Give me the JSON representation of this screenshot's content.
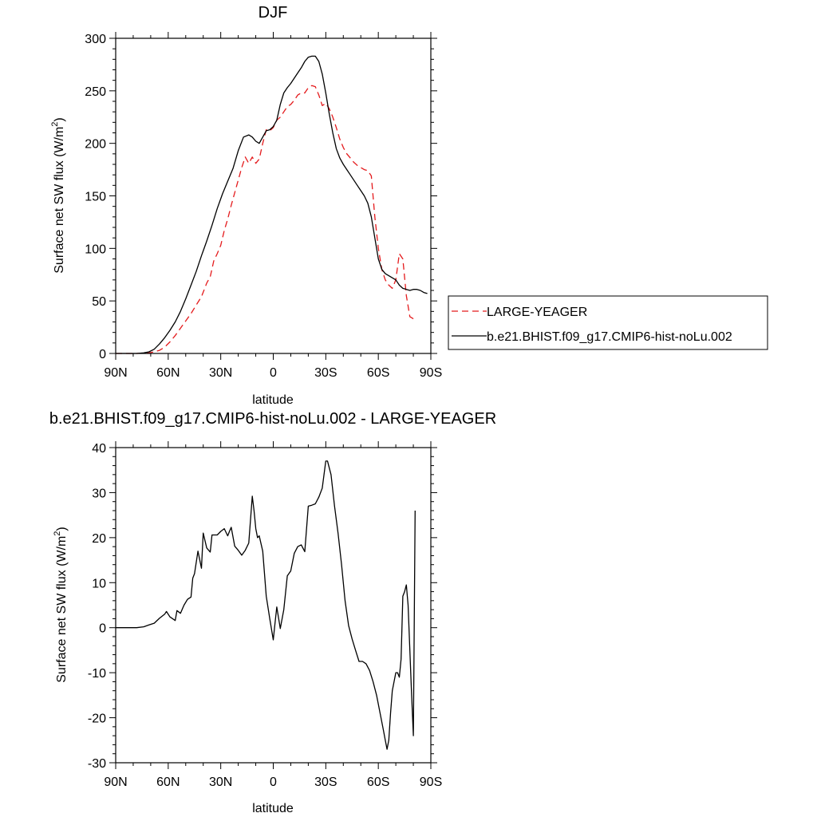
{
  "chart_data": [
    {
      "type": "line",
      "title": "DJF",
      "xlabel": "latitude",
      "ylabel_main": "Surface net SW flux (W/m",
      "ylabel_sup": "2",
      "ylabel_close": ")",
      "xlim": [
        90,
        -90
      ],
      "ylim": [
        0,
        300
      ],
      "xticks": [
        90,
        60,
        30,
        0,
        -30,
        -60,
        -90
      ],
      "xtick_labels": [
        "90N",
        "60N",
        "30N",
        "0",
        "30S",
        "60S",
        "90S"
      ],
      "yticks": [
        0,
        50,
        100,
        150,
        200,
        250,
        300
      ],
      "ytick_labels": [
        "0",
        "50",
        "100",
        "150",
        "200",
        "250",
        "300"
      ],
      "legend_position": "outside-right",
      "series": [
        {
          "name": "LARGE-YEAGER",
          "color": "#e41a1c",
          "dash": "dashed",
          "x": [
            90,
            84,
            78,
            74,
            71,
            68,
            65,
            62,
            59,
            56,
            53,
            50,
            47,
            44,
            41,
            38,
            36,
            34,
            32,
            30,
            28,
            26,
            24,
            22,
            20,
            18,
            16,
            14,
            12,
            10,
            8,
            6,
            4,
            2,
            0,
            -2,
            -4,
            -6,
            -8,
            -10,
            -12,
            -14,
            -16,
            -18,
            -20,
            -22,
            -24,
            -26,
            -28,
            -30,
            -32,
            -34,
            -36,
            -38,
            -40,
            -42,
            -44,
            -46,
            -48,
            -50,
            -52,
            -54,
            -56,
            -58,
            -60,
            -62,
            -64,
            -66,
            -68,
            -70,
            -72,
            -74,
            -76,
            -78,
            -79,
            -80
          ],
          "y": [
            0,
            0,
            0,
            0.2,
            0.5,
            1.5,
            3,
            6,
            11,
            17,
            24,
            31,
            38,
            46,
            54,
            67,
            73,
            88,
            95,
            103,
            117,
            128,
            141,
            153,
            165,
            177,
            187,
            181,
            187,
            181,
            185,
            200,
            213,
            212,
            215,
            222,
            225,
            230,
            235,
            237,
            241,
            246,
            248,
            248,
            253,
            255,
            254,
            246,
            236,
            238,
            233,
            225,
            215,
            204,
            196,
            190,
            186,
            182,
            179,
            177,
            175,
            174,
            169,
            130,
            100,
            80,
            70,
            65,
            62,
            70,
            95,
            90,
            55,
            35,
            34,
            33
          ]
        },
        {
          "name": "b.e21.BHIST.f09_g17.CMIP6-hist-noLu.002",
          "color": "#000000",
          "dash": "solid",
          "x": [
            90,
            84,
            78,
            74,
            71,
            68,
            65,
            62,
            59,
            56,
            53,
            50,
            47,
            44,
            41,
            38,
            35,
            32,
            29,
            26,
            23,
            20,
            17,
            14,
            12,
            10,
            8,
            6,
            4,
            2,
            0,
            -2,
            -4,
            -6,
            -8,
            -10,
            -12,
            -14,
            -16,
            -18,
            -20,
            -22,
            -24,
            -26,
            -28,
            -30,
            -32,
            -34,
            -36,
            -38,
            -40,
            -42,
            -44,
            -46,
            -48,
            -50,
            -52,
            -54,
            -56,
            -58,
            -60,
            -62,
            -64,
            -66,
            -68,
            -70,
            -72,
            -74,
            -76,
            -78,
            -80,
            -82,
            -84,
            -86,
            -88
          ],
          "y": [
            0,
            0,
            0,
            0.5,
            1.5,
            4,
            9,
            15,
            22,
            30,
            40,
            52,
            65,
            78,
            93,
            107,
            122,
            138,
            152,
            164,
            176,
            193,
            206,
            208,
            206,
            202,
            200,
            206,
            212,
            213,
            216,
            222,
            237,
            248,
            253,
            257,
            262,
            267,
            272,
            278,
            282,
            283,
            283,
            278,
            266,
            248,
            228,
            210,
            195,
            186,
            180,
            175,
            170,
            165,
            160,
            155,
            150,
            143,
            130,
            110,
            90,
            80,
            76,
            74,
            72,
            70,
            65,
            62,
            61,
            60,
            61,
            61,
            60,
            58,
            57
          ]
        }
      ]
    },
    {
      "type": "line",
      "title": "b.e21.BHIST.f09_g17.CMIP6-hist-noLu.002 - LARGE-YEAGER",
      "xlabel": "latitude",
      "ylabel_main": "Surface net SW flux (W/m",
      "ylabel_sup": "2",
      "ylabel_close": ")",
      "xlim": [
        90,
        -90
      ],
      "ylim": [
        -30,
        40
      ],
      "xticks": [
        90,
        60,
        30,
        0,
        -30,
        -60,
        -90
      ],
      "xtick_labels": [
        "90N",
        "60N",
        "30N",
        "0",
        "30S",
        "60S",
        "90S"
      ],
      "yticks": [
        -30,
        -20,
        -10,
        0,
        10,
        20,
        30,
        40
      ],
      "ytick_labels": [
        "-30",
        "-20",
        "-10",
        "0",
        "10",
        "20",
        "30",
        "40"
      ],
      "series": [
        {
          "name": "",
          "color": "#000000",
          "dash": "solid",
          "x": [
            90,
            84,
            78,
            74,
            71,
            68,
            65,
            62,
            61,
            59,
            56,
            55,
            53,
            51,
            49,
            47,
            46,
            45,
            43,
            41,
            40,
            38,
            36,
            35,
            34,
            32,
            30,
            28,
            26,
            25,
            24,
            22,
            20,
            18,
            16,
            14,
            12,
            11,
            10,
            9,
            8,
            6,
            4,
            2,
            0,
            -1,
            -2,
            -4,
            -6,
            -8,
            -10,
            -12,
            -14,
            -16,
            -18,
            -20,
            -22,
            -24,
            -26,
            -28,
            -30,
            -31,
            -33,
            -35,
            -37,
            -39,
            -41,
            -43,
            -45,
            -47,
            -49,
            -51,
            -53,
            -55,
            -57,
            -59,
            -61,
            -63,
            -64,
            -65,
            -66,
            -67,
            -68,
            -69,
            -70,
            -71,
            -72,
            -73,
            -74,
            -75,
            -76,
            -77,
            -78,
            -79,
            -80,
            -81
          ],
          "y": [
            0,
            0,
            0,
            0.2,
            0.6,
            1,
            2.1,
            3,
            3.6,
            2.4,
            1.6,
            3.8,
            3.2,
            5,
            6.3,
            6.8,
            11,
            12,
            17,
            13.2,
            21,
            17.7,
            16.8,
            20.6,
            20.6,
            20.6,
            21.4,
            22,
            20.4,
            21.4,
            22.3,
            18.1,
            17.2,
            16.1,
            17.2,
            18.8,
            29.2,
            26,
            22,
            20,
            20.4,
            17,
            7,
            2,
            -2.7,
            1,
            4.6,
            -0.2,
            4,
            11.5,
            12.6,
            16.5,
            18,
            18.4,
            16.9,
            27,
            27.2,
            27.5,
            29,
            31,
            37,
            37,
            34,
            27,
            21,
            14,
            6,
            0.5,
            -2.5,
            -5,
            -7.5,
            -7.5,
            -8,
            -9.5,
            -12,
            -15,
            -19,
            -23,
            -25,
            -27,
            -25,
            -19,
            -14,
            -12,
            -10,
            -10,
            -11,
            -7,
            7,
            8,
            9.5,
            5,
            -5,
            -15,
            -24,
            26
          ]
        }
      ]
    }
  ]
}
